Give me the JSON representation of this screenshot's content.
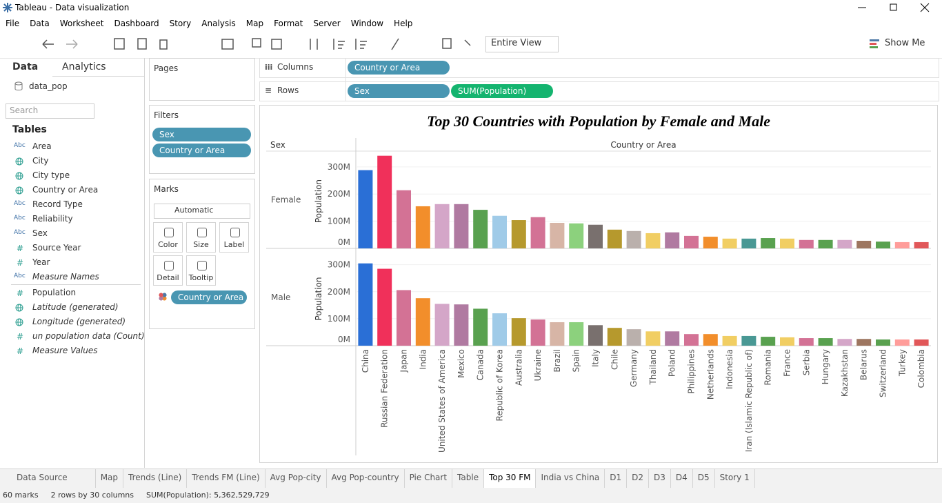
{
  "window": {
    "title": "Tableau - Data visualization"
  },
  "menu": [
    "File",
    "Data",
    "Worksheet",
    "Dashboard",
    "Story",
    "Analysis",
    "Map",
    "Format",
    "Server",
    "Window",
    "Help"
  ],
  "toolbar": {
    "fit": "Entire View",
    "show_me": "Show Me"
  },
  "data_pane": {
    "tabs": [
      "Data",
      "Analytics"
    ],
    "source": "data_pop",
    "search": "Search",
    "tables": "Tables",
    "fields": [
      {
        "icon": "Abc",
        "name": "Area"
      },
      {
        "icon": "geo",
        "name": "City"
      },
      {
        "icon": "geo",
        "name": "City type"
      },
      {
        "icon": "geo",
        "name": "Country or Area"
      },
      {
        "icon": "Abc",
        "name": "Record Type"
      },
      {
        "icon": "Abc",
        "name": "Reliability"
      },
      {
        "icon": "Abc",
        "name": "Sex"
      },
      {
        "icon": "#",
        "name": "Source Year"
      },
      {
        "icon": "#",
        "name": "Year"
      },
      {
        "icon": "Abc",
        "name": "Measure Names",
        "italic": true
      },
      {
        "icon": "#",
        "name": "Population"
      },
      {
        "icon": "geo",
        "name": "Latitude (generated)",
        "italic": true
      },
      {
        "icon": "geo",
        "name": "Longitude (generated)",
        "italic": true
      },
      {
        "icon": "#",
        "name": "un population data (Count)",
        "italic": true
      },
      {
        "icon": "#",
        "name": "Measure Values",
        "italic": true
      }
    ]
  },
  "cards": {
    "pages": "Pages",
    "filters": {
      "title": "Filters",
      "pills": [
        "Sex",
        "Country or Area"
      ]
    },
    "marks": {
      "title": "Marks",
      "type": "Automatic",
      "buttons": [
        "Color",
        "Size",
        "Label",
        "Detail",
        "Tooltip"
      ],
      "pill": "Country or Area"
    }
  },
  "shelves": {
    "columns": {
      "label": "Columns",
      "pills": [
        {
          "text": "Country or Area",
          "color": "#4996b2"
        }
      ]
    },
    "rows": {
      "label": "Rows",
      "pills": [
        {
          "text": "Sex",
          "color": "#4996b2"
        },
        {
          "text": "SUM(Population)",
          "color": "#14b46f"
        }
      ]
    }
  },
  "chart_data": {
    "type": "bar",
    "title": "Top 30 Countries with Population by Female and Male",
    "row_header": "Sex",
    "column_header": "Country or Area",
    "y_label": "Population",
    "categories": [
      "China",
      "Russian Federation",
      "Japan",
      "India",
      "United States of America",
      "Mexico",
      "Canada",
      "Republic of Korea",
      "Australia",
      "Ukraine",
      "Brazil",
      "Spain",
      "Italy",
      "Chile",
      "Germany",
      "Thailand",
      "Poland",
      "Philippines",
      "Netherlands",
      "Indonesia",
      "Iran (Islamic Republic of)",
      "Romania",
      "France",
      "Serbia",
      "Hungary",
      "Kazakhstan",
      "Belarus",
      "Switzerland",
      "Turkey",
      "Colombia"
    ],
    "colors": [
      "#2a6fd6",
      "#f0305a",
      "#d37295",
      "#f28e2b",
      "#d4a6c8",
      "#b07aa1",
      "#59a14f",
      "#a0cbe8",
      "#b6992d",
      "#d37295",
      "#d7b5a6",
      "#8cd17d",
      "#79706e",
      "#b6992d",
      "#bab0ac",
      "#f1ce63",
      "#b07aa1",
      "#d37295",
      "#f28e2b",
      "#f1ce63",
      "#499894",
      "#59a14f",
      "#f1ce63",
      "#d37295",
      "#59a14f",
      "#d4a6c8",
      "#9d7660",
      "#59a14f",
      "#ff9d9a",
      "#e15759"
    ],
    "series": [
      {
        "name": "Female",
        "values": [
          288000000,
          341000000,
          214000000,
          155000000,
          163000000,
          163000000,
          142000000,
          120000000,
          104000000,
          115000000,
          94000000,
          92000000,
          87000000,
          69000000,
          64000000,
          56000000,
          59000000,
          46000000,
          43000000,
          36000000,
          36000000,
          38000000,
          36000000,
          31000000,
          31000000,
          31000000,
          28000000,
          25000000,
          23000000,
          23000000
        ]
      },
      {
        "name": "Male",
        "values": [
          305000000,
          285000000,
          206000000,
          176000000,
          155000000,
          153000000,
          137000000,
          120000000,
          102000000,
          97000000,
          87000000,
          87000000,
          76000000,
          66000000,
          61000000,
          53000000,
          53000000,
          43000000,
          43000000,
          36000000,
          36000000,
          33000000,
          31000000,
          28000000,
          28000000,
          25000000,
          25000000,
          23000000,
          23000000,
          23000000
        ]
      }
    ],
    "ylim": [
      0,
      358000000
    ],
    "yticks": [
      {
        "value": 0,
        "label": "0M"
      },
      {
        "value": 100000000,
        "label": "100M"
      },
      {
        "value": 200000000,
        "label": "200M"
      },
      {
        "value": 300000000,
        "label": "300M"
      }
    ]
  },
  "sheet_tabs": {
    "tabs": [
      "Data Source",
      "Map",
      "Trends (Line)",
      "Trends FM (Line)",
      "Avg Pop-city",
      "Avg Pop-country",
      "Pie Chart",
      "Table",
      "Top 30 FM",
      "India vs China",
      "D1",
      "D2",
      "D3",
      "D4",
      "D5",
      "Story 1"
    ],
    "active": 8
  },
  "status": [
    "60 marks",
    "2 rows by 30 columns",
    "SUM(Population): 5,362,529,729"
  ]
}
